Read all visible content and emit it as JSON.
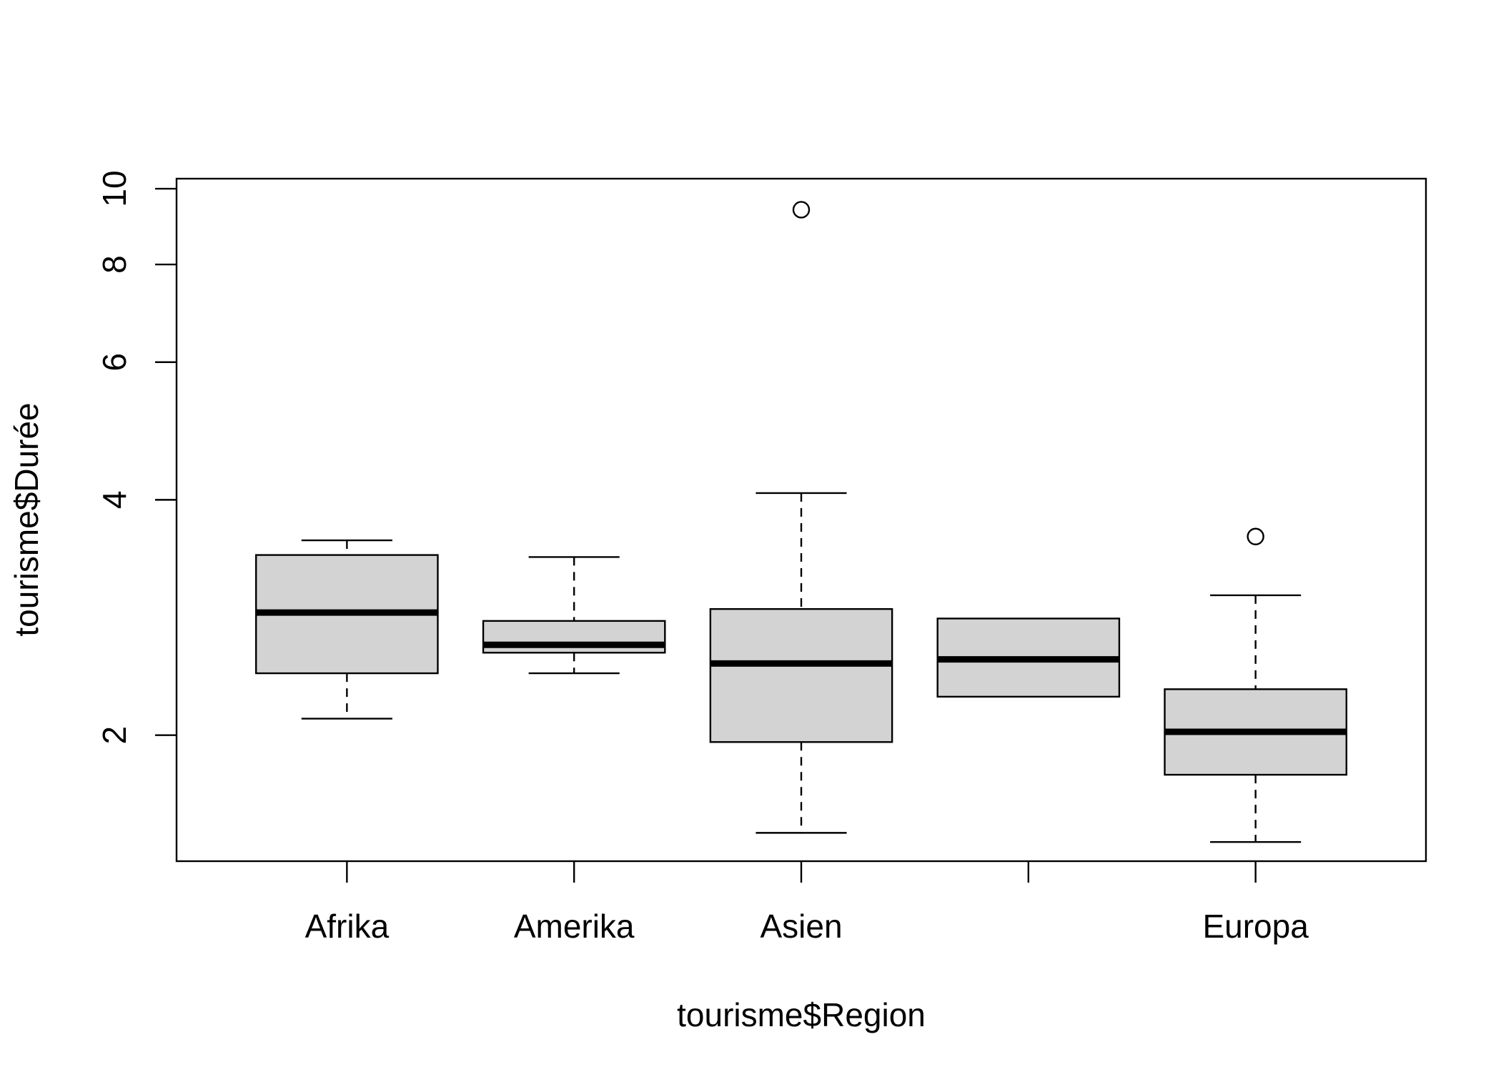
{
  "chart_data": {
    "type": "boxplot",
    "xlabel": "tourisme$Region",
    "ylabel": "tourisme$Durée",
    "y_scale": "log",
    "ylim": [
      1.38,
      10.3
    ],
    "y_ticks": [
      2,
      4,
      6,
      8,
      10
    ],
    "categories": [
      "Afrika",
      "Amerika",
      "Asien",
      "",
      "Europa"
    ],
    "boxes": [
      {
        "name": "Afrika",
        "whisker_low": 2.1,
        "q1": 2.4,
        "median": 2.87,
        "q3": 3.4,
        "whisker_high": 3.55,
        "outliers": []
      },
      {
        "name": "Amerika",
        "whisker_low": 2.4,
        "q1": 2.55,
        "median": 2.61,
        "q3": 2.8,
        "whisker_high": 3.38,
        "outliers": []
      },
      {
        "name": "Asien",
        "whisker_low": 1.5,
        "q1": 1.96,
        "median": 2.47,
        "q3": 2.9,
        "whisker_high": 4.08,
        "outliers": [
          9.4
        ]
      },
      {
        "name": "",
        "whisker_low": 2.24,
        "q1": 2.24,
        "median": 2.5,
        "q3": 2.82,
        "whisker_high": 2.82,
        "outliers": []
      },
      {
        "name": "Europa",
        "whisker_low": 1.46,
        "q1": 1.78,
        "median": 2.02,
        "q3": 2.29,
        "whisker_high": 3.02,
        "outliers": [
          3.59
        ]
      }
    ],
    "colors": {
      "box_fill": "#d3d3d3",
      "stroke": "#000000"
    }
  }
}
